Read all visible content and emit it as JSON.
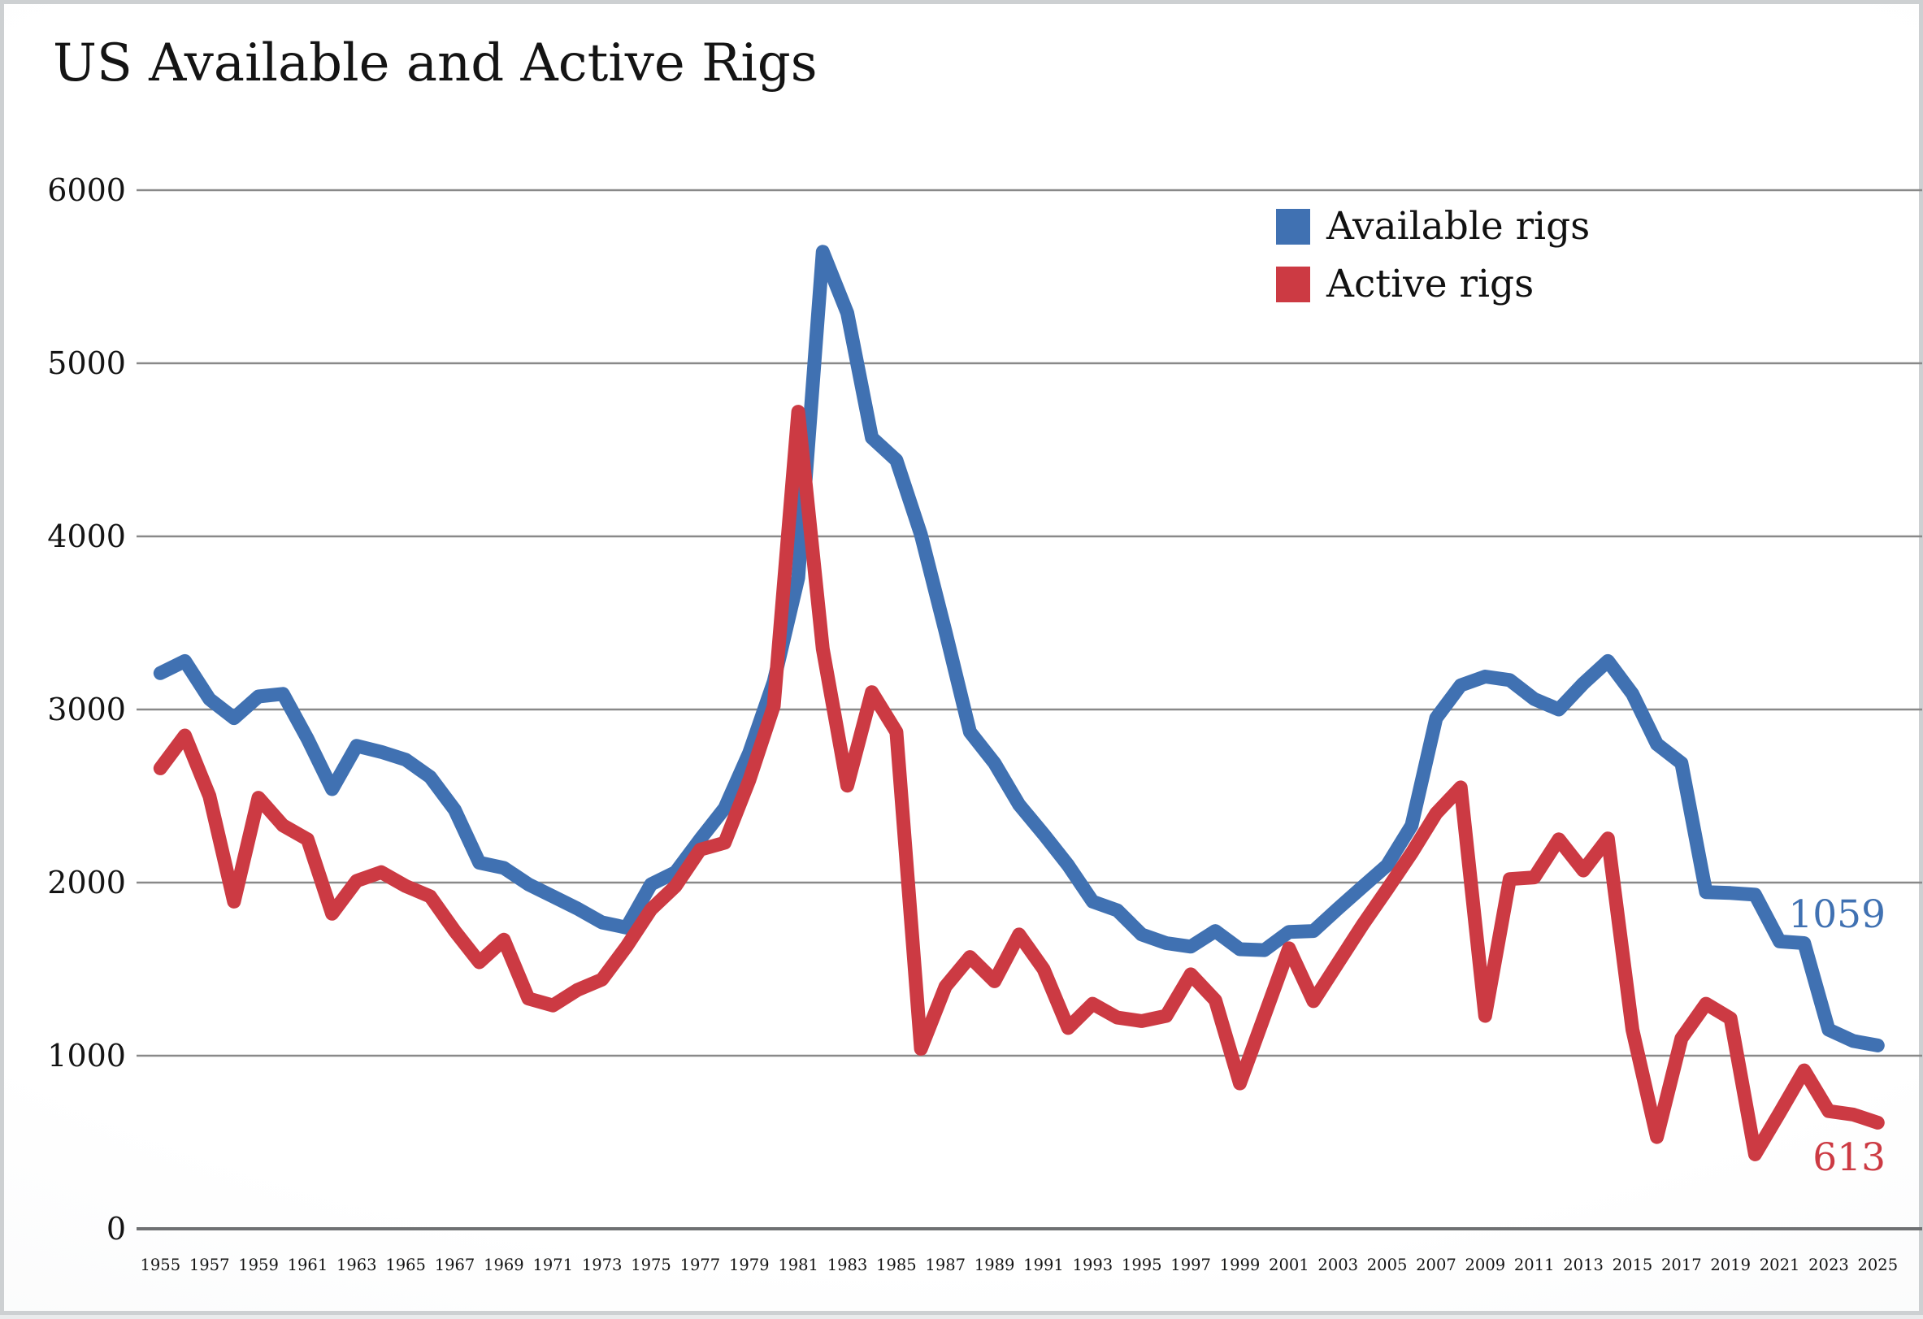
{
  "title": "US Available and Active Rigs",
  "legend": {
    "items": [
      {
        "label": "Available rigs",
        "color": "#4071b2"
      },
      {
        "label": "Active rigs",
        "color": "#cc3a43"
      }
    ]
  },
  "annotations": {
    "available_end_value": "1059",
    "active_end_value": "613"
  },
  "colors": {
    "available": "#4071b2",
    "active": "#cc3a43",
    "gridline": "#898989",
    "axis": "#6f7173",
    "text": "#141414",
    "frame": "#cdd0d2"
  },
  "chart_data": {
    "type": "line",
    "title": "US Available and Active Rigs",
    "xlabel": "",
    "ylabel": "",
    "x_start": 1955,
    "x_end": 2025,
    "x": [
      1955,
      1956,
      1957,
      1958,
      1959,
      1960,
      1961,
      1962,
      1963,
      1964,
      1965,
      1966,
      1967,
      1968,
      1969,
      1970,
      1971,
      1972,
      1973,
      1974,
      1975,
      1976,
      1977,
      1978,
      1979,
      1980,
      1981,
      1982,
      1983,
      1984,
      1985,
      1986,
      1987,
      1988,
      1989,
      1990,
      1991,
      1992,
      1993,
      1994,
      1995,
      1996,
      1997,
      1998,
      1999,
      2000,
      2001,
      2002,
      2003,
      2004,
      2005,
      2006,
      2007,
      2008,
      2009,
      2010,
      2011,
      2012,
      2013,
      2014,
      2015,
      2016,
      2017,
      2018,
      2019,
      2020,
      2021,
      2022,
      2023,
      2024,
      2025
    ],
    "series": [
      {
        "name": "Available rigs",
        "color": "#4071b2",
        "values": [
          3210,
          3280,
          3060,
          2950,
          3075,
          3090,
          2830,
          2540,
          2790,
          2755,
          2710,
          2610,
          2420,
          2115,
          2085,
          1990,
          1920,
          1850,
          1770,
          1740,
          1990,
          2060,
          2250,
          2430,
          2750,
          3160,
          3760,
          5644,
          5290,
          4570,
          4440,
          4010,
          3450,
          2870,
          2690,
          2450,
          2280,
          2100,
          1890,
          1840,
          1700,
          1650,
          1630,
          1720,
          1615,
          1610,
          1715,
          1720,
          1850,
          1975,
          2100,
          2330,
          2950,
          3140,
          3190,
          3170,
          3060,
          3000,
          3150,
          3280,
          3090,
          2800,
          2690,
          1945,
          1940,
          1930,
          1660,
          1650,
          1150,
          1085,
          1059
        ]
      },
      {
        "name": "Active rigs",
        "color": "#cc3a43",
        "values": [
          2660,
          2850,
          2500,
          1890,
          2490,
          2330,
          2250,
          1820,
          2010,
          2060,
          1980,
          1920,
          1720,
          1540,
          1670,
          1330,
          1290,
          1380,
          1440,
          1630,
          1845,
          1980,
          2190,
          2230,
          2590,
          3020,
          4720,
          3350,
          2560,
          3100,
          2870,
          1040,
          1400,
          1570,
          1430,
          1700,
          1500,
          1160,
          1300,
          1220,
          1200,
          1230,
          1470,
          1320,
          840,
          1230,
          1620,
          1315,
          1535,
          1755,
          1960,
          2170,
          2400,
          2550,
          1230,
          2020,
          2030,
          2250,
          2070,
          2255,
          1150,
          530,
          1100,
          1300,
          1215,
          430,
          670,
          915,
          680,
          660,
          613
        ]
      }
    ],
    "ylim": [
      0,
      6000
    ],
    "yticks": [
      0,
      1000,
      2000,
      3000,
      4000,
      5000,
      6000
    ],
    "xticks": [
      1955,
      1957,
      1959,
      1961,
      1963,
      1965,
      1967,
      1969,
      1971,
      1973,
      1975,
      1977,
      1979,
      1981,
      1983,
      1985,
      1987,
      1989,
      1991,
      1993,
      1995,
      1997,
      1999,
      2001,
      2003,
      2005,
      2007,
      2009,
      2011,
      2013,
      2015,
      2017,
      2019,
      2021,
      2023,
      2025
    ],
    "grid": "horizontal",
    "legend_position": "top-right",
    "end_labels": {
      "Available rigs": "1059",
      "Active rigs": "613"
    }
  }
}
